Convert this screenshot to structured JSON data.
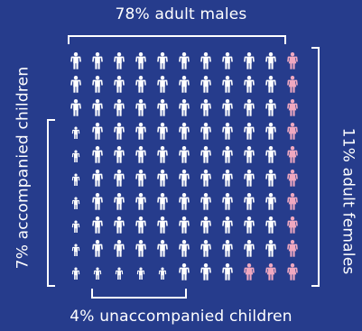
{
  "labels": {
    "top": "78% adult males",
    "left": "7% accompanied children",
    "right": "11% adult females",
    "bottom": "4% unaccompanied children"
  },
  "colors": {
    "background": "#263c8c",
    "male": "#ffffff",
    "female": "#f0a8c0",
    "bracket": "#ffffff"
  },
  "icons": {
    "adult_male": "adult-male-icon",
    "adult_female": "adult-female-icon",
    "child": "child-icon"
  },
  "grid": {
    "rows": [
      "MMMMMMMMMMF",
      "MMMMMMMMMMF",
      "MMMMMMMMMMF",
      "cMMMMMMMMMF",
      "cMMMMMMMMMF",
      "cMMMMMMMMMF",
      "cMMMMMMMMMF",
      "cMMMMMMMMMF",
      "cMMMMMMMMMF",
      "cccccMMMFFF"
    ]
  }
}
